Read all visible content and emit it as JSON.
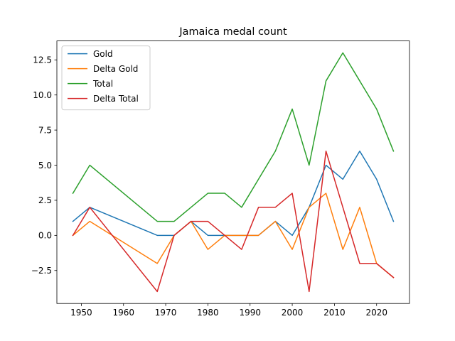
{
  "chart_data": {
    "type": "line",
    "title": "Jamaica medal count",
    "xlabel": "",
    "ylabel": "",
    "x": [
      1948,
      1952,
      1968,
      1972,
      1976,
      1980,
      1984,
      1988,
      1992,
      1996,
      2000,
      2004,
      2008,
      2012,
      2016,
      2020,
      2024
    ],
    "xlim": [
      1944.2,
      2027.8
    ],
    "ylim": [
      -4.85,
      13.85
    ],
    "xticks": [
      "1950",
      "1960",
      "1970",
      "1980",
      "1990",
      "2000",
      "2010",
      "2020"
    ],
    "yticks": [
      "−2.5",
      "0.0",
      "2.5",
      "5.0",
      "7.5",
      "10.0",
      "12.5"
    ],
    "grid": false,
    "legend_position": "top-left",
    "series": [
      {
        "name": "Gold",
        "color": "#1f77b4",
        "values": [
          1,
          2,
          0,
          0,
          1,
          0,
          0,
          0,
          0,
          1,
          0,
          2,
          5,
          4,
          6,
          4,
          1
        ]
      },
      {
        "name": "Delta Gold",
        "color": "#ff7f0e",
        "values": [
          0,
          1,
          -2,
          0,
          1,
          -1,
          0,
          0,
          0,
          1,
          -1,
          2,
          3,
          -1,
          2,
          -2,
          -3
        ]
      },
      {
        "name": "Total",
        "color": "#2ca02c",
        "values": [
          3,
          5,
          1,
          1,
          2,
          3,
          3,
          2,
          4,
          6,
          9,
          5,
          11,
          13,
          11,
          9,
          6
        ]
      },
      {
        "name": "Delta Total",
        "color": "#d62728",
        "values": [
          0,
          2,
          -4,
          0,
          1,
          1,
          0,
          -1,
          2,
          2,
          3,
          -4,
          6,
          2,
          -2,
          -2,
          -3
        ]
      }
    ]
  }
}
